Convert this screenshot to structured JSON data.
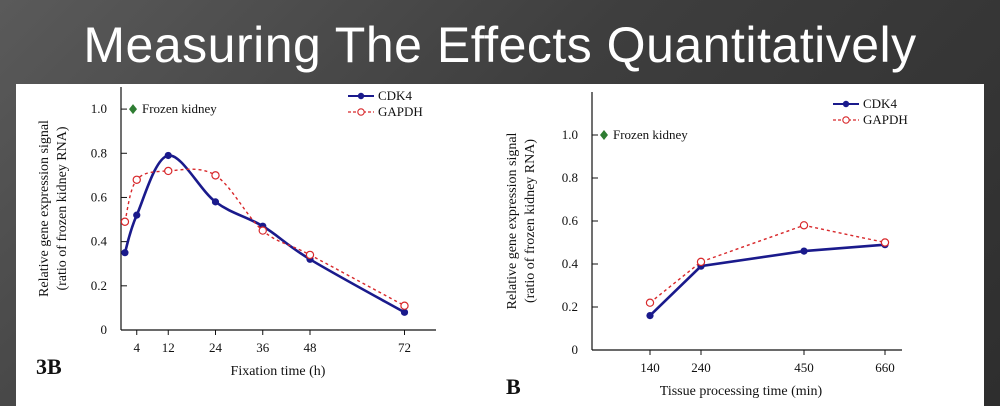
{
  "slide": {
    "title": "Measuring The Effects Quantitatively"
  },
  "colors": {
    "cdk4": "#1a1a8c",
    "gapdh": "#d8282b",
    "frozen_marker": "#2e7d32",
    "background": "#444444"
  },
  "chart_data": [
    {
      "type": "line",
      "panel_label": "3B",
      "xlabel": "Fixation time (h)",
      "ylabel": "Relative gene expression signal",
      "ylabel2": "(ratio of frozen kidney RNA)",
      "ylim": [
        0,
        1.1
      ],
      "xlim": [
        0,
        80
      ],
      "x_ticks": [
        4,
        12,
        24,
        36,
        48,
        72
      ],
      "y_ticks": [
        0,
        0.2,
        0.4,
        0.6,
        0.8,
        1.0
      ],
      "y_tick_labels": [
        "0",
        "0.2",
        "0.4",
        "0.6",
        "0.8",
        "1.0"
      ],
      "annotation": "Frozen kidney",
      "annotation_value": 1.0,
      "legend_position": "top-right",
      "series": [
        {
          "name": "CDK4",
          "x": [
            1,
            4,
            12,
            24,
            36,
            48,
            72
          ],
          "y": [
            0.35,
            0.52,
            0.79,
            0.58,
            0.47,
            0.32,
            0.08
          ]
        },
        {
          "name": "GAPDH",
          "x": [
            1,
            4,
            12,
            24,
            36,
            48,
            72
          ],
          "y": [
            0.49,
            0.68,
            0.72,
            0.7,
            0.45,
            0.34,
            0.11
          ]
        }
      ]
    },
    {
      "type": "line",
      "panel_label": "B",
      "xlabel": "Tissue processing time (min)",
      "ylabel": "Relative gene expression signal",
      "ylabel2": "(ratio of frozen kidney RNA)",
      "ylim": [
        0,
        1.2
      ],
      "x_categories": [
        "140",
        "240",
        "450",
        "660"
      ],
      "y_ticks": [
        0,
        0.2,
        0.4,
        0.6,
        0.8,
        1.0
      ],
      "y_tick_labels": [
        "0",
        "0.2",
        "0.4",
        "0.6",
        "0.8",
        "1.0"
      ],
      "annotation": "Frozen kidney",
      "annotation_value": 1.0,
      "legend_position": "top-right",
      "series": [
        {
          "name": "CDK4",
          "values": [
            0.16,
            0.39,
            0.46,
            0.49
          ]
        },
        {
          "name": "GAPDH",
          "values": [
            0.22,
            0.41,
            0.58,
            0.5
          ]
        }
      ]
    }
  ]
}
